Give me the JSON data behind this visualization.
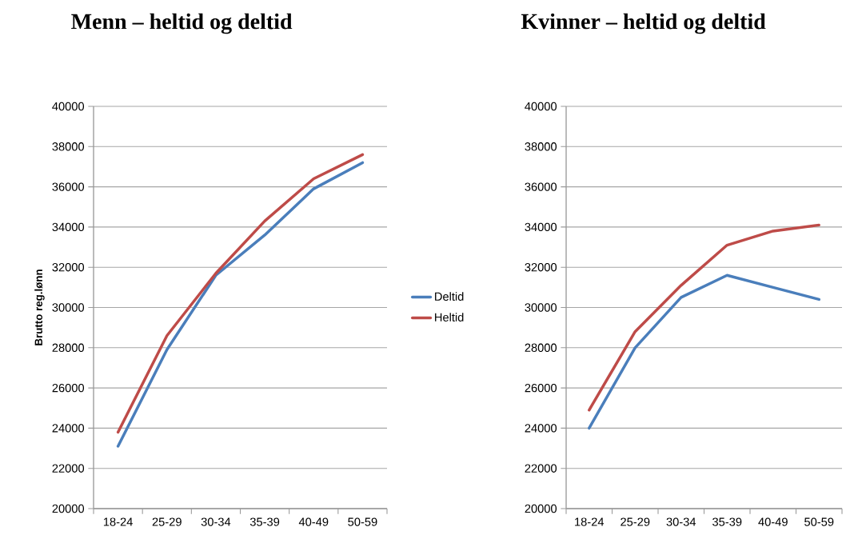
{
  "chart_data": [
    {
      "type": "line",
      "title": "Menn – heltid og deltid",
      "ylabel": "Brutto reg.lønn",
      "categories": [
        "18-24",
        "25-29",
        "30-34",
        "35-39",
        "40-49",
        "50-59"
      ],
      "series": [
        {
          "name": "Deltid",
          "color": "#4a7ebb",
          "values": [
            23100,
            27900,
            31600,
            33600,
            35900,
            37200
          ]
        },
        {
          "name": "Heltid",
          "color": "#be4b48",
          "values": [
            23800,
            28600,
            31700,
            34300,
            36400,
            37600
          ]
        }
      ],
      "ylim": [
        20000,
        40000
      ],
      "yticks": [
        20000,
        22000,
        24000,
        26000,
        28000,
        30000,
        32000,
        34000,
        36000,
        38000,
        40000
      ],
      "grid": "y",
      "legend": "right",
      "marker": "none",
      "line_style": "solid"
    },
    {
      "type": "line",
      "title": "Kvinner – heltid og deltid",
      "categories": [
        "18-24",
        "25-29",
        "30-34",
        "35-39",
        "40-49",
        "50-59"
      ],
      "series": [
        {
          "color": "#4a7ebb",
          "values": [
            24000,
            28000,
            30500,
            31600,
            31000,
            30400
          ]
        },
        {
          "color": "#be4b48",
          "values": [
            24900,
            28800,
            31100,
            33100,
            33800,
            34100
          ]
        }
      ],
      "ylim": [
        20000,
        40000
      ],
      "yticks": [
        20000,
        22000,
        24000,
        26000,
        28000,
        30000,
        32000,
        34000,
        36000,
        38000,
        40000
      ],
      "grid": "y",
      "marker": "none",
      "line_style": "solid"
    }
  ]
}
